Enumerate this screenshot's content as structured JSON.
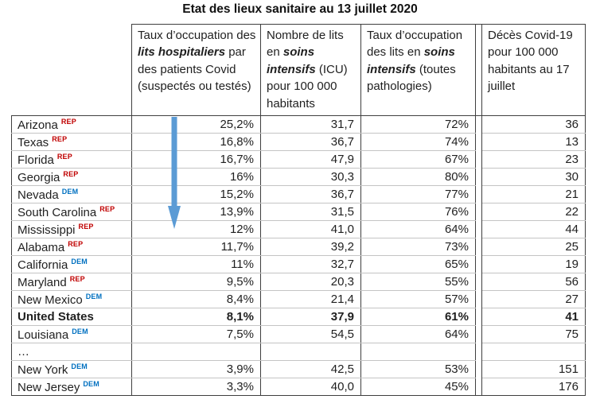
{
  "title": "Etat des lieux sanitaire au 13 juillet 2020",
  "colors": {
    "rep": "#C00000",
    "dem": "#0070C0",
    "arrow": "#5B9BD5",
    "grid_light": "#c4c4c4",
    "grid_dark": "#3f3f3f"
  },
  "arrow": {
    "meaning": "down-arrow-icon",
    "direction": "down"
  },
  "table": {
    "headers": [
      {
        "pre": "Taux d’occupation des ",
        "em": "lits hospitaliers",
        "post": " par des patients Covid (suspectés ou testés)"
      },
      {
        "pre": "Nombre de lits en ",
        "em": "soins intensifs",
        "post": " (ICU) pour 100 000 habitants"
      },
      {
        "pre": "Taux d’occupation des lits en ",
        "em": "soins intensifs",
        "post": " (toutes pathologies)"
      },
      {
        "pre": "Décès Covid-19 pour 100 000 habitants au 17 juillet",
        "em": "",
        "post": ""
      }
    ],
    "rows": [
      {
        "state": "Arizona",
        "party": "REP",
        "bold": false,
        "values": [
          "25,2%",
          "31,7",
          "72%",
          "36"
        ]
      },
      {
        "state": "Texas",
        "party": "REP",
        "bold": false,
        "values": [
          "16,8%",
          "36,7",
          "74%",
          "13"
        ]
      },
      {
        "state": "Florida",
        "party": "REP",
        "bold": false,
        "values": [
          "16,7%",
          "47,9",
          "67%",
          "23"
        ]
      },
      {
        "state": "Georgia",
        "party": "REP",
        "bold": false,
        "values": [
          "16%",
          "30,3",
          "80%",
          "30"
        ]
      },
      {
        "state": "Nevada",
        "party": "DEM",
        "bold": false,
        "values": [
          "15,2%",
          "36,7",
          "77%",
          "21"
        ]
      },
      {
        "state": "South Carolina",
        "party": "REP",
        "bold": false,
        "values": [
          "13,9%",
          "31,5",
          "76%",
          "22"
        ]
      },
      {
        "state": "Mississippi",
        "party": "REP",
        "bold": false,
        "values": [
          "12%",
          "41,0",
          "64%",
          "44"
        ]
      },
      {
        "state": "Alabama",
        "party": "REP",
        "bold": false,
        "values": [
          "11,7%",
          "39,2",
          "73%",
          "25"
        ]
      },
      {
        "state": "California",
        "party": "DEM",
        "bold": false,
        "values": [
          "11%",
          "32,7",
          "65%",
          "19"
        ]
      },
      {
        "state": "Maryland",
        "party": "REP",
        "bold": false,
        "values": [
          "9,5%",
          "20,3",
          "55%",
          "56"
        ]
      },
      {
        "state": "New Mexico",
        "party": "DEM",
        "bold": false,
        "values": [
          "8,4%",
          "21,4",
          "57%",
          "27"
        ]
      },
      {
        "state": "United States",
        "party": "",
        "bold": true,
        "values": [
          "8,1%",
          "37,9",
          "61%",
          "41"
        ]
      },
      {
        "state": "Louisiana",
        "party": "DEM",
        "bold": false,
        "values": [
          "7,5%",
          "54,5",
          "64%",
          "75"
        ]
      },
      {
        "state": "…",
        "party": "",
        "bold": false,
        "values": [
          "",
          "",
          "",
          ""
        ]
      },
      {
        "state": "New York",
        "party": "DEM",
        "bold": false,
        "values": [
          "3,9%",
          "42,5",
          "53%",
          "151"
        ]
      },
      {
        "state": "New Jersey",
        "party": "DEM",
        "bold": false,
        "values": [
          "3,3%",
          "40,0",
          "45%",
          "176"
        ]
      }
    ]
  }
}
